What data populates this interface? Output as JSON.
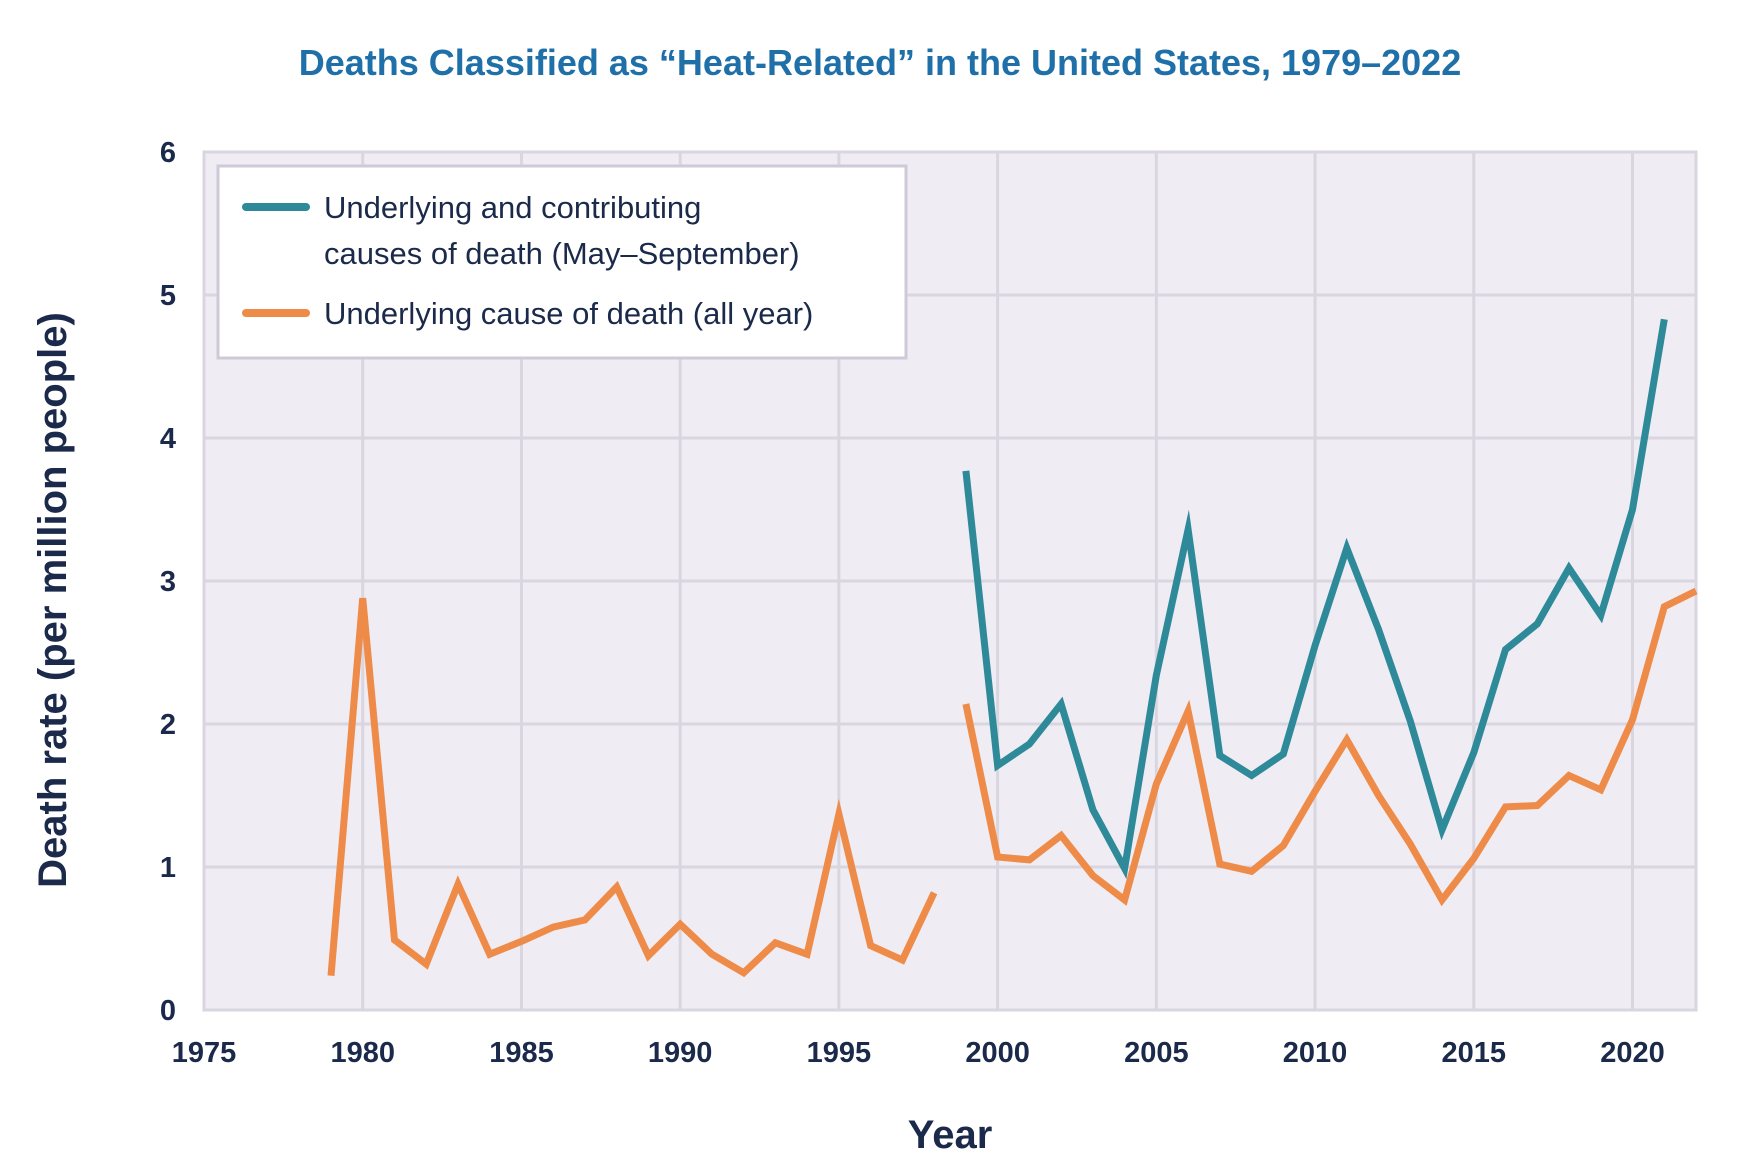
{
  "chart_data": {
    "type": "line",
    "title": "Deaths Classified as “Heat-Related” in the United States, 1979–2022",
    "xlabel": "Year",
    "ylabel": "Death rate (per million people)",
    "xlim": [
      1975,
      2022
    ],
    "ylim": [
      0,
      6
    ],
    "xticks": [
      1975,
      1980,
      1985,
      1990,
      1995,
      2000,
      2005,
      2010,
      2015,
      2020
    ],
    "yticks": [
      0,
      1,
      2,
      3,
      4,
      5,
      6
    ],
    "grid": true,
    "legend_position": "top-left",
    "series": [
      {
        "name": "underlying_and_contributing",
        "legend_lines": [
          "Underlying and contributing",
          "causes of death (May–September)"
        ],
        "color": "#2e8a99",
        "segments": [
          {
            "x": [
              1999,
              2000,
              2001,
              2002,
              2003,
              2004,
              2005,
              2006,
              2007,
              2008,
              2009,
              2010,
              2011,
              2012,
              2013,
              2014,
              2015,
              2016,
              2017,
              2018,
              2019,
              2020,
              2021
            ],
            "y": [
              3.77,
              1.71,
              1.86,
              2.14,
              1.4,
              0.99,
              2.34,
              3.36,
              1.78,
              1.64,
              1.79,
              2.55,
              3.23,
              2.66,
              2.02,
              1.26,
              1.8,
              2.52,
              2.7,
              3.09,
              2.76,
              3.5,
              4.83
            ]
          }
        ]
      },
      {
        "name": "underlying_all_year",
        "legend_lines": [
          "Underlying cause of death (all year)"
        ],
        "color": "#ee8b48",
        "segments": [
          {
            "x": [
              1979,
              1980,
              1981,
              1982,
              1983,
              1984,
              1985,
              1986,
              1987,
              1988,
              1989,
              1990,
              1991,
              1992,
              1993,
              1994,
              1995,
              1996,
              1997,
              1998
            ],
            "y": [
              0.24,
              2.88,
              0.49,
              0.32,
              0.88,
              0.39,
              0.48,
              0.58,
              0.63,
              0.86,
              0.38,
              0.6,
              0.39,
              0.26,
              0.47,
              0.39,
              1.37,
              0.45,
              0.35,
              0.82
            ]
          },
          {
            "x": [
              1999,
              2000,
              2001,
              2002,
              2003,
              2004,
              2005,
              2006,
              2007,
              2008,
              2009,
              2010,
              2011,
              2012,
              2013,
              2014,
              2015,
              2016,
              2017,
              2018,
              2019,
              2020,
              2021,
              2022
            ],
            "y": [
              2.14,
              1.07,
              1.05,
              1.22,
              0.94,
              0.77,
              1.58,
              2.09,
              1.02,
              0.97,
              1.15,
              1.53,
              1.89,
              1.5,
              1.16,
              0.77,
              1.06,
              1.42,
              1.43,
              1.64,
              1.54,
              2.03,
              2.82,
              2.93
            ]
          }
        ]
      }
    ]
  }
}
